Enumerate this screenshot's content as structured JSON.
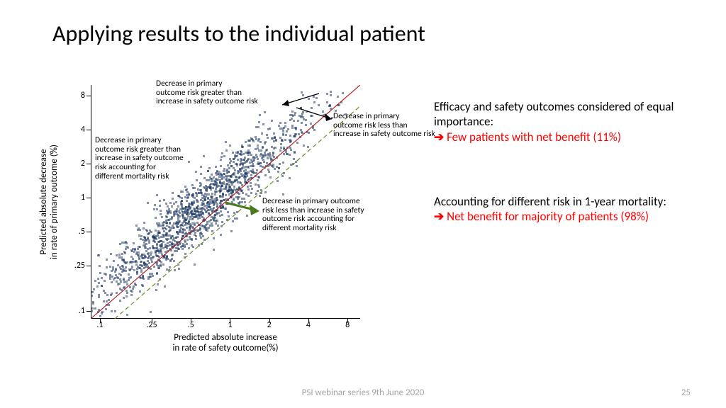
{
  "title": "Applying results to the individual patient",
  "chart": {
    "type": "scatter",
    "x_axis_title": "Predicted absolute increase\nin rate of safety outcome(%)",
    "y_axis_title": "Predicted absolute decrease\nin rate of primary outcome (%)",
    "xscale": "log",
    "yscale": "log",
    "xlim": [
      0.085,
      10
    ],
    "ylim": [
      0.085,
      10
    ],
    "x_ticks": [
      0.1,
      0.25,
      0.5,
      1,
      2,
      4,
      8
    ],
    "x_tick_labels": [
      ".1",
      ".25",
      ".5",
      "1",
      "2",
      "4",
      "8"
    ],
    "y_ticks": [
      0.1,
      0.25,
      0.5,
      1,
      2,
      4,
      8
    ],
    "y_tick_labels": [
      ".1",
      ".25",
      ".5",
      "1",
      "2",
      "4",
      "8"
    ],
    "tick_fontsize": 12,
    "axis_title_fontsize": 13,
    "point_color": "#1f3a66",
    "point_size": 3,
    "point_opacity": 0.55,
    "n_points": 1600,
    "cloud_center_logx": -0.25,
    "cloud_center_logy": -0.18,
    "cloud_sd_along": 0.62,
    "cloud_sd_perp": 0.11,
    "ref_line_identity": {
      "color": "#b22222",
      "width": 1.2,
      "dash": "solid",
      "points": [
        [
          0.085,
          0.085
        ],
        [
          10,
          10
        ]
      ]
    },
    "ref_line_shifted": {
      "color": "#6b8e23",
      "width": 1.2,
      "dash": "6,4",
      "points": [
        [
          0.13,
          0.085
        ],
        [
          10,
          6.5
        ]
      ]
    },
    "background_color": "#ffffff"
  },
  "callouts": {
    "top_left": "Decrease in primary\noutcome risk greater than\nincrease in safety outcome risk",
    "top_right": "Decrease in primary\noutcome risk less than\nincrease in safety outcome risk",
    "mid_left": "Decrease in primary\noutcome risk greater than\nincrease in safety outcome\nrisk accounting for\ndifferent mortality risk",
    "mid_right": "Decrease in primary outcome\nrisk less than increase in safety\noutcome risk accounting for\ndifferent mortality risk"
  },
  "right": {
    "para1_plain": "Efficacy and safety outcomes considered of equal importance:",
    "para1_red": "Few patients with net benefit (11%)",
    "para2_plain": "Accounting for different risk in 1-year mortality:",
    "para2_red": "Net benefit for majority of patients (98%)"
  },
  "footer": {
    "center": "PSI webinar series 9th June 2020",
    "page": "25"
  },
  "colors": {
    "title": "#000000",
    "body": "#000000",
    "red": "#ff0000",
    "footer": "#a6a6a6"
  }
}
